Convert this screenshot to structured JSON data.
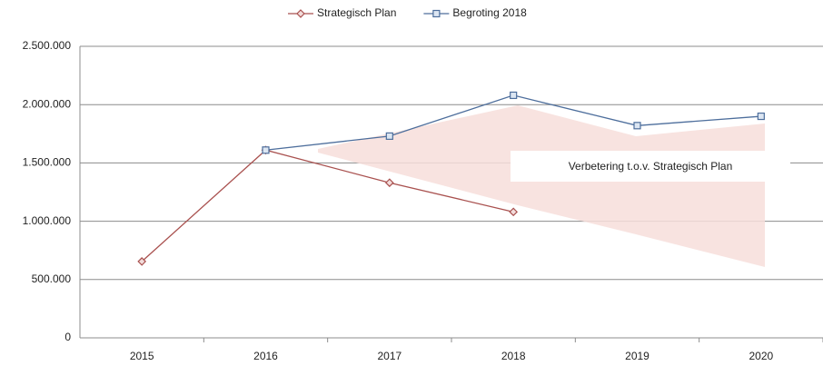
{
  "chart_data": {
    "type": "line",
    "categories": [
      "2015",
      "2016",
      "2017",
      "2018",
      "2019",
      "2020"
    ],
    "series": [
      {
        "name": "Strategisch Plan",
        "color": "#a9514f",
        "marker": "diamond",
        "values": [
          655000,
          1610000,
          1330000,
          1080000,
          null,
          null
        ]
      },
      {
        "name": "Begroting 2018",
        "color": "#4d6e9c",
        "marker": "square",
        "values": [
          null,
          1610000,
          1730000,
          2080000,
          1820000,
          1900000
        ]
      }
    ],
    "ylim": [
      0,
      2500000
    ],
    "yticks": [
      0,
      {
        "value": 500000,
        "label": "500.000"
      },
      {
        "value": 1000000,
        "label": "1.000.000"
      },
      {
        "value": 1500000,
        "label": "1.500.000"
      },
      {
        "value": 2000000,
        "label": "2.000.000"
      },
      {
        "value": 2500000,
        "label": "2.500.000"
      }
    ],
    "grid": true,
    "legend": "top",
    "annotation": "Verbetering t.o.v. Strategisch Plan"
  }
}
